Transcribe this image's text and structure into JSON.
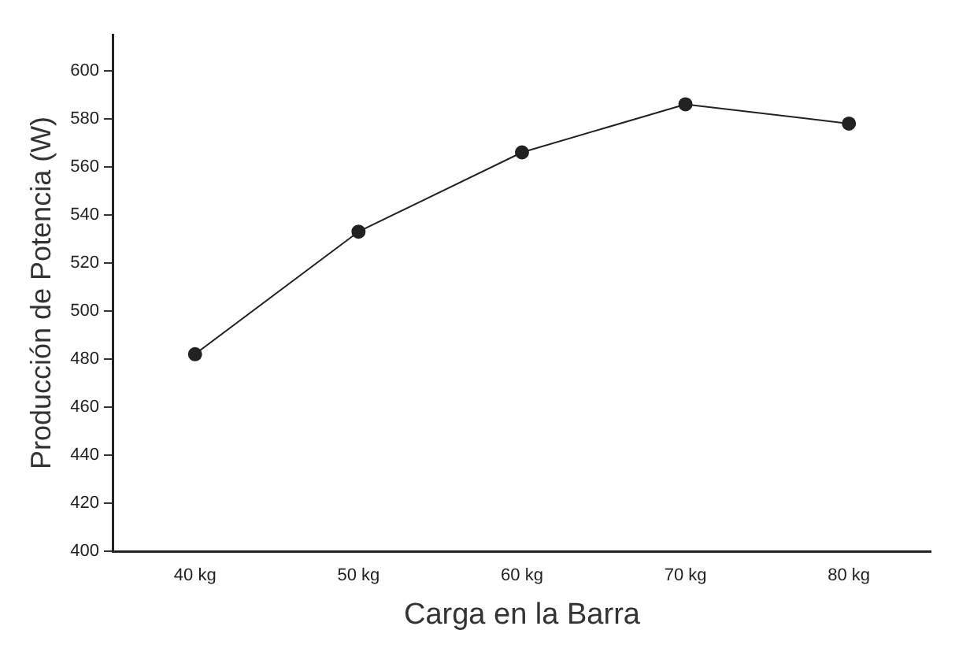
{
  "chart_data": {
    "type": "line",
    "xlabel": "Carga en la Barra",
    "ylabel": "Producción de Potencia (W)",
    "categories": [
      "40 kg",
      "50 kg",
      "60 kg",
      "70 kg",
      "80 kg"
    ],
    "series": [
      {
        "color": "#222222",
        "values": [
          482,
          533,
          566,
          586,
          578
        ]
      }
    ],
    "ylim": [
      400,
      615
    ],
    "yticks": [
      400,
      420,
      440,
      460,
      480,
      500,
      520,
      540,
      560,
      580,
      600
    ],
    "grid": false,
    "legend": false,
    "marker": "circle",
    "line_style": "solid"
  }
}
